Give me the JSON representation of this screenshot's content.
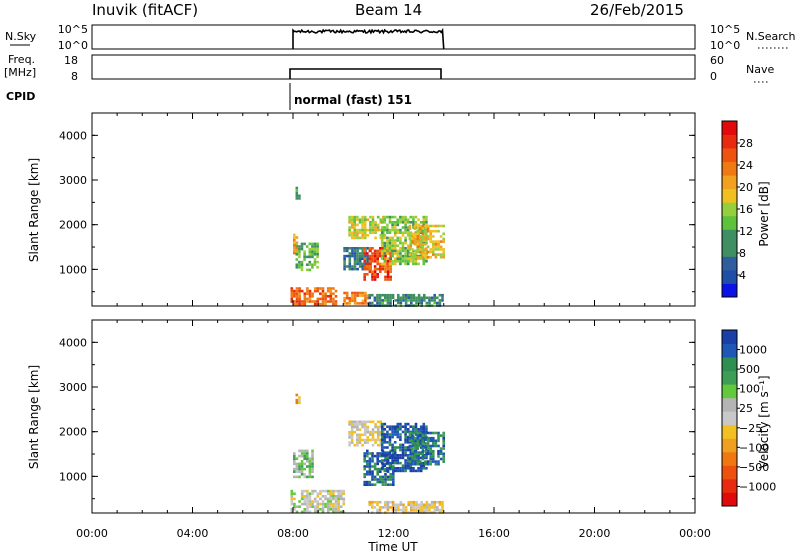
{
  "header": {
    "station": "Inuvik (fitACF)",
    "beam": "Beam 14",
    "date": "26/Feb/2015"
  },
  "top_panels": {
    "nsky_label": "N.Sky",
    "nsky_ticks": [
      "10^5",
      "10^0"
    ],
    "nsky_right_ticks": [
      "10^5",
      "10^0"
    ],
    "nsearch_label": "N.Search",
    "freq_label": "Freq.",
    "freq_unit": "[MHz]",
    "freq_ticks": [
      "18",
      "8"
    ],
    "nave_ticks": [
      "60",
      "0"
    ],
    "nave_label": "Nave",
    "cpid_label": "CPID",
    "cpid_text": "normal (fast) 151"
  },
  "axes": {
    "ylabel": "Slant Range [km]",
    "xlabel": "Time UT",
    "x_ticks": [
      "00:00",
      "04:00",
      "08:00",
      "12:00",
      "16:00",
      "20:00",
      "00:00"
    ],
    "y_ticks": [
      "1000",
      "2000",
      "3000",
      "4000"
    ]
  },
  "colorbars": {
    "power_label": "Power [dB]",
    "power_ticks": [
      "4",
      "8",
      "12",
      "16",
      "20",
      "24",
      "28"
    ],
    "velocity_label": "Velocity [m s⁻¹]",
    "velocity_ticks": [
      "1000",
      "500",
      "100",
      "25",
      "−25",
      "−100",
      "−500",
      "−1000"
    ]
  },
  "colors": {
    "power_scale": [
      "#0a12e6",
      "#1f4ea6",
      "#2f5e9e",
      "#3f8f63",
      "#3f8f63",
      "#5fc23c",
      "#96cf3e",
      "#f0c020",
      "#f2a020",
      "#f07a12",
      "#ee5410",
      "#e82a0e",
      "#e00a0a"
    ],
    "velocity_scale": [
      "#1a3fa6",
      "#1f57b6",
      "#2f8f50",
      "#3f9e55",
      "#62c83c",
      "#b4b4b4",
      "#c8c8c8",
      "#f2c020",
      "#f0a020",
      "#f07812",
      "#ee5010",
      "#e82a0e",
      "#e00a0a"
    ]
  },
  "chart_data": [
    {
      "type": "line",
      "title": "Inuvik (fitACF) Beam 14 26/Feb/2015",
      "panel": "N.Sky / N.Search",
      "x_range_hours": [
        0,
        24
      ],
      "active_interval_hours": [
        8,
        14
      ]
    },
    {
      "type": "line",
      "panel": "Freq. / Nave",
      "x_range_hours": [
        0,
        24
      ],
      "active_interval_hours": [
        8,
        14
      ],
      "freq_range_mhz": [
        8,
        18
      ],
      "nave_range": [
        0,
        60
      ]
    },
    {
      "type": "heatmap",
      "panel": "power",
      "xlabel": "Time UT",
      "ylabel": "Slant Range [km]",
      "x_range_hours": [
        0,
        24
      ],
      "ylim_km": [
        180,
        4500
      ],
      "colorbar": "Power [dB]",
      "colorbar_range": [
        0,
        30
      ],
      "echo_regions": [
        {
          "t": [
            7.9,
            9.7
          ],
          "r": [
            200,
            600
          ],
          "level": 24
        },
        {
          "t": [
            8.1,
            9.0
          ],
          "r": [
            1000,
            1600
          ],
          "level": 12
        },
        {
          "t": [
            8.0,
            8.2
          ],
          "r": [
            1350,
            1800
          ],
          "level": 20
        },
        {
          "t": [
            10.0,
            11.1
          ],
          "r": [
            1000,
            1500
          ],
          "level": 6
        },
        {
          "t": [
            10.2,
            11.6
          ],
          "r": [
            1700,
            2200
          ],
          "level": 16
        },
        {
          "t": [
            10.8,
            11.9
          ],
          "r": [
            800,
            1500
          ],
          "level": 26
        },
        {
          "t": [
            11.5,
            13.3
          ],
          "r": [
            1100,
            2200
          ],
          "level": 14
        },
        {
          "t": [
            12.6,
            14.0
          ],
          "r": [
            1300,
            2000
          ],
          "level": 18
        },
        {
          "t": [
            10.0,
            11.0
          ],
          "r": [
            250,
            500
          ],
          "level": 22
        },
        {
          "t": [
            11.0,
            14.0
          ],
          "r": [
            180,
            450
          ],
          "level": 8
        },
        {
          "t": [
            8.1,
            8.3
          ],
          "r": [
            2600,
            2850
          ],
          "level": 10
        }
      ]
    },
    {
      "type": "heatmap",
      "panel": "velocity",
      "xlabel": "Time UT",
      "ylabel": "Slant Range [km]",
      "x_range_hours": [
        0,
        24
      ],
      "ylim_km": [
        180,
        4500
      ],
      "colorbar": "Velocity [m s⁻¹]",
      "colorbar_range": [
        -1000,
        1000
      ],
      "echo_regions": [
        {
          "t": [
            7.9,
            10.0
          ],
          "r": [
            200,
            700
          ],
          "level": 100
        },
        {
          "t": [
            8.0,
            8.8
          ],
          "r": [
            1000,
            1600
          ],
          "level": 300
        },
        {
          "t": [
            10.2,
            11.6
          ],
          "r": [
            1700,
            2250
          ],
          "level": 0
        },
        {
          "t": [
            10.8,
            12.0
          ],
          "r": [
            800,
            1600
          ],
          "level": 800
        },
        {
          "t": [
            11.5,
            13.3
          ],
          "r": [
            1100,
            2200
          ],
          "level": 900
        },
        {
          "t": [
            12.6,
            14.0
          ],
          "r": [
            1300,
            2000
          ],
          "level": 700
        },
        {
          "t": [
            11.0,
            14.0
          ],
          "r": [
            180,
            450
          ],
          "level": -80
        },
        {
          "t": [
            8.1,
            8.3
          ],
          "r": [
            2650,
            2850
          ],
          "level": -300
        }
      ]
    }
  ]
}
